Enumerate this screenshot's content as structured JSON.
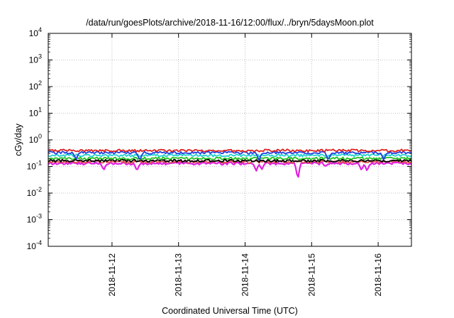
{
  "chart_data": {
    "type": "line",
    "title": "/data/run/goesPlots/archive/2018-11-16/12:00/flux/../bryn/5daysMoon.plot",
    "xlabel": "Coordinated Universal Time (UTC)",
    "ylabel": "cGy/day",
    "yscale": "log",
    "ylim": [
      0.0001,
      10000
    ],
    "yticks": [
      {
        "base": "10",
        "exp": "-4",
        "value": 0.0001
      },
      {
        "base": "10",
        "exp": "-3",
        "value": 0.001
      },
      {
        "base": "10",
        "exp": "-2",
        "value": 0.01
      },
      {
        "base": "10",
        "exp": "-1",
        "value": 0.1
      },
      {
        "base": "10",
        "exp": "0",
        "value": 1
      },
      {
        "base": "10",
        "exp": "1",
        "value": 10
      },
      {
        "base": "10",
        "exp": "2",
        "value": 100
      },
      {
        "base": "10",
        "exp": "3",
        "value": 1000
      },
      {
        "base": "10",
        "exp": "4",
        "value": 10000
      }
    ],
    "xlim": [
      "2018-11-11 01:00",
      "2018-11-16 12:00"
    ],
    "xticks": [
      "2018-11-12",
      "2018-11-13",
      "2018-11-14",
      "2018-11-15",
      "2018-11-16"
    ],
    "grid": true,
    "series": [
      {
        "color": "#e02020",
        "level": 0.4,
        "dips": []
      },
      {
        "color": "#2040e0",
        "level": 0.33,
        "dips": [
          [
            "2018-11-11 11:00",
            0.18
          ],
          [
            "2018-11-12 10:00",
            0.16
          ],
          [
            "2018-11-14 05:00",
            0.16
          ],
          [
            "2018-11-15 06:00",
            0.16
          ],
          [
            "2018-11-16 02:00",
            0.17
          ]
        ]
      },
      {
        "color": "#20d0d0",
        "level": 0.26,
        "dips": []
      },
      {
        "color": "#20c020",
        "level": 0.2,
        "dips": []
      },
      {
        "color": "#000000",
        "level": 0.165,
        "dips": []
      },
      {
        "color": "#e05050",
        "level": 0.15,
        "dips": []
      },
      {
        "color": "#e020e0",
        "level": 0.13,
        "dips": [
          [
            "2018-11-11 21:00",
            0.07
          ],
          [
            "2018-11-12 09:00",
            0.065
          ],
          [
            "2018-11-14 04:00",
            0.065
          ],
          [
            "2018-11-14 06:00",
            0.075
          ],
          [
            "2018-11-14 19:00",
            0.024
          ],
          [
            "2018-11-15 05:00",
            0.1
          ],
          [
            "2018-11-15 18:00",
            0.07
          ],
          [
            "2018-11-15 20:00",
            0.065
          ]
        ]
      }
    ]
  }
}
